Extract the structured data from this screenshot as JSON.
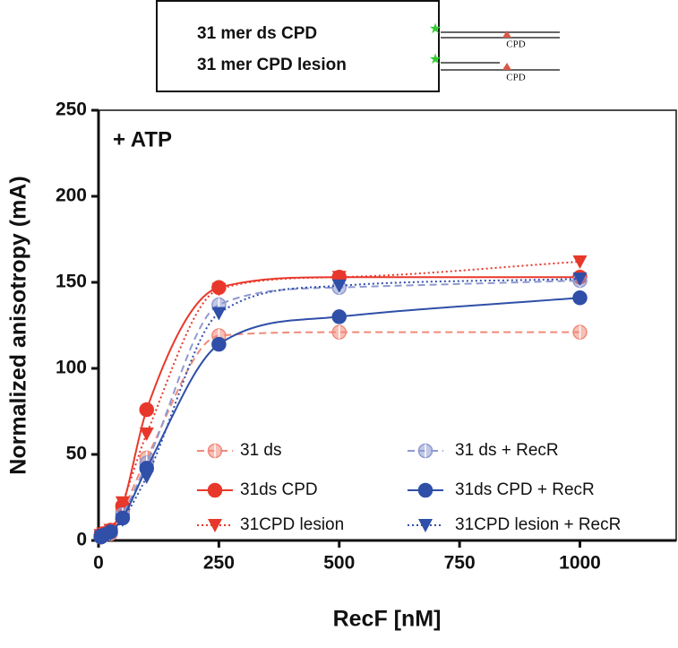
{
  "inset": {
    "labels": [
      "31 mer ds CPD",
      "31 mer CPD lesion"
    ],
    "diagram_labels": [
      "CPD",
      "CPD"
    ]
  },
  "chart_data": {
    "type": "line",
    "annotation": "+ ATP",
    "x_label": "RecF [nM]",
    "y_label": "Normalized anisotropy (mA)",
    "x": [
      5,
      10,
      25,
      50,
      100,
      250,
      500,
      1000
    ],
    "xlim": [
      0,
      1200
    ],
    "xticks": [
      0,
      250,
      500,
      750,
      1000
    ],
    "ylim": [
      0,
      250
    ],
    "yticks": [
      0,
      50,
      100,
      150,
      200,
      250
    ],
    "legend": "lower center",
    "series": [
      {
        "name": "31 ds",
        "color": "#f08a7a",
        "linestyle": "dashed",
        "marker": "half-circle",
        "values": [
          2,
          3,
          4,
          17,
          48,
          119,
          121,
          121
        ]
      },
      {
        "name": "31ds CPD",
        "color": "#e8382b",
        "linestyle": "solid",
        "marker": "circle",
        "values": [
          3,
          4,
          6,
          20,
          76,
          147,
          153,
          153
        ]
      },
      {
        "name": "31CPD lesion",
        "color": "#e8382b",
        "linestyle": "dotted",
        "marker": "triangle",
        "values": [
          3,
          4,
          6,
          22,
          62,
          146,
          153,
          162
        ]
      },
      {
        "name": "31 ds + RecR",
        "color": "#8f9ad0",
        "linestyle": "dashed",
        "marker": "half-circle",
        "values": [
          2,
          3,
          5,
          15,
          45,
          137,
          147,
          151
        ]
      },
      {
        "name": "31ds CPD + RecR",
        "color": "#2f4fa8",
        "linestyle": "solid",
        "marker": "circle",
        "values": [
          2,
          3,
          5,
          13,
          42,
          114,
          130,
          141
        ]
      },
      {
        "name": "31CPD lesion + RecR",
        "color": "#2f4fa8",
        "linestyle": "dotted",
        "marker": "triangle",
        "values": [
          2,
          3,
          4,
          12,
          37,
          132,
          148,
          152
        ]
      }
    ]
  }
}
